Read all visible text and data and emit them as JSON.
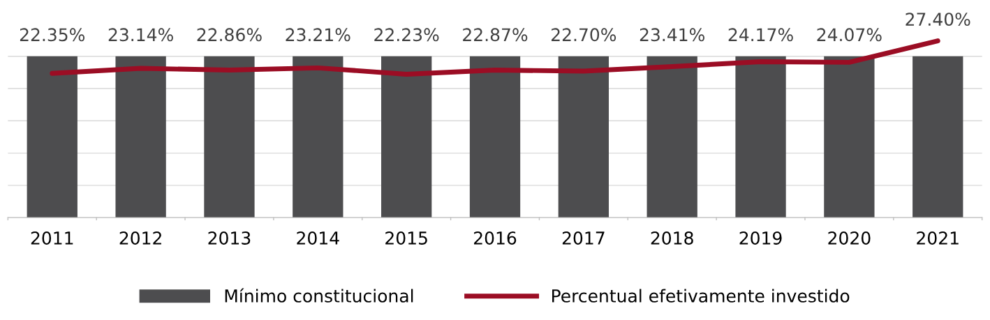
{
  "chart_data": {
    "type": "bar",
    "categories": [
      "2011",
      "2012",
      "2013",
      "2014",
      "2015",
      "2016",
      "2017",
      "2018",
      "2019",
      "2020",
      "2021"
    ],
    "series": [
      {
        "name": "Mínimo constitucional",
        "color": "#4d4d4f",
        "values": [
          25,
          25,
          25,
          25,
          25,
          25,
          25,
          25,
          25,
          25,
          25
        ]
      },
      {
        "name": "Percentual efetivamente investido",
        "type": "line",
        "color": "#9b0d24",
        "values": [
          22.35,
          23.14,
          22.86,
          23.21,
          22.23,
          22.87,
          22.7,
          23.41,
          24.17,
          24.07,
          27.4
        ],
        "value_labels": [
          "22.35%",
          "23.14%",
          "22.86%",
          "23.21%",
          "22.23%",
          "22.87%",
          "22.70%",
          "23.41%",
          "24.17%",
          "24.07%",
          "27.40%"
        ]
      }
    ],
    "yticks": [
      {
        "value": 0,
        "label": null
      },
      {
        "value": 5,
        "label": null
      },
      {
        "value": 10,
        "label": null
      },
      {
        "value": 15,
        "label": null
      },
      {
        "value": 20,
        "label": null
      },
      {
        "value": 25,
        "label": null
      }
    ],
    "grid": "y",
    "legend": "bottom",
    "tick_labels": "x",
    "marker": "none",
    "line_style": "solid"
  }
}
